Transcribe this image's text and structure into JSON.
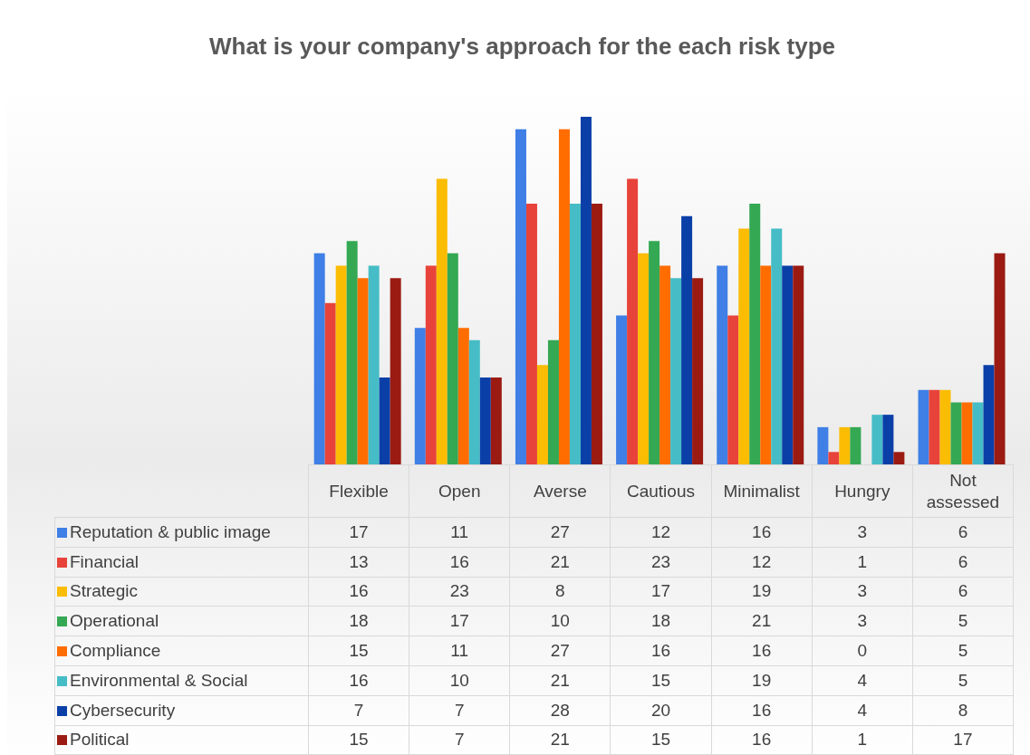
{
  "chart_data": {
    "type": "bar",
    "title": "What is your company's approach for the each risk type",
    "categories": [
      "Flexible",
      "Open",
      "Averse",
      "Cautious",
      "Minimalist",
      "Hungry",
      "Not assessed"
    ],
    "series": [
      {
        "name": "Reputation & public image",
        "color": "#3f7fe6",
        "values": [
          17,
          11,
          27,
          12,
          16,
          3,
          6
        ]
      },
      {
        "name": "Financial",
        "color": "#e8433a",
        "values": [
          13,
          16,
          21,
          23,
          12,
          1,
          6
        ]
      },
      {
        "name": "Strategic",
        "color": "#fbbc04",
        "values": [
          16,
          23,
          8,
          17,
          19,
          3,
          6
        ]
      },
      {
        "name": "Operational",
        "color": "#34a853",
        "values": [
          18,
          17,
          10,
          18,
          21,
          3,
          5
        ]
      },
      {
        "name": "Compliance",
        "color": "#ff6d01",
        "values": [
          15,
          11,
          27,
          16,
          16,
          0,
          5
        ]
      },
      {
        "name": "Environmental & Social",
        "color": "#46bdc6",
        "values": [
          16,
          10,
          21,
          15,
          19,
          4,
          5
        ]
      },
      {
        "name": "Cybersecurity",
        "color": "#0b3fa8",
        "values": [
          7,
          7,
          28,
          20,
          16,
          4,
          8
        ]
      },
      {
        "name": "Political",
        "color": "#9b1b12",
        "values": [
          15,
          7,
          21,
          15,
          16,
          1,
          17
        ]
      }
    ],
    "data_labels": true,
    "legend": "bottom",
    "grid": false
  }
}
